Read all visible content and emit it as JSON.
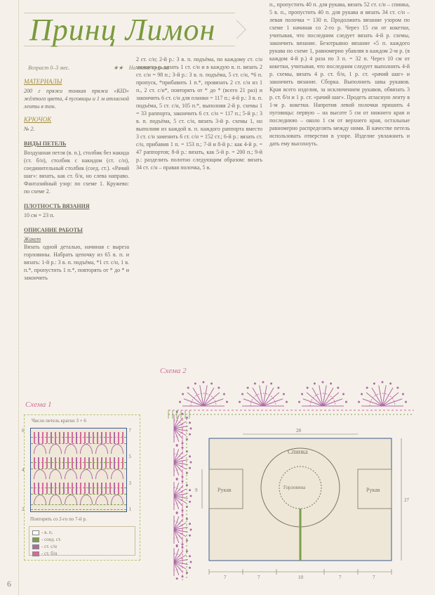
{
  "title": "Принц Лимон",
  "subtitle_left": "Возраст 0–3 мес.",
  "subtitle_stars": "★★",
  "subtitle_right": "На схеме крючка",
  "materials_label": "МАТЕРИАЛЫ",
  "materials_text": "200 г пряжи тонкая пряжа «KID» жёлтого цвета, 4 пуговицы и 1 м атласной ленты в тон.",
  "hook_label": "КРЮЧОК",
  "hook_text": "№ 2.",
  "stitches_h": "ВИДЫ ПЕТЕЛЬ",
  "stitches_text": "Воздушная петля (в. п.), столбик без накида (ст. б/н), столбик с накидом (ст. с/н), соединительный столбик (соед. ст.). «Рачий шаг»: вязать, как ст. б/н, но слева направо. Фантазийный узор: по схеме 1. Кружево: по схеме 2.",
  "gauge_h": "ПЛОТНОСТЬ ВЯЗАНИЯ",
  "gauge_text": "10 см = 23 п.",
  "work_h": "ОПИСАНИЕ РАБОТЫ",
  "work_sub": "Жакет",
  "work_text": "Вязать одной деталью, начиная с выреза горловины. Набрать цепочку из 65 в. п. и вязать: 1-й р.: 3 в. п. подъёма, *1 ст. с/н, 1 в. п.*, пропустить 1 п.*, повторять от * до * и закончить",
  "col2_text": "2 ст. с/н; 2-й р.: 3 в. п. подъёма, по каждому ст. с/н нижнего р. вязать 1 ст. с/н и в каждую в. п. вязать 2 ст. с/н = 98 п.; 3-й р.: 3 в. п. подъёма, 5 ст. с/н, *6 п. пропуск, *прибавить 1 п.*, провязать 2 ст. с/н из 1 п., 2 ст. с/н*, повторять от * до * (всего 21 раз) и закончить 6 ст. с/н для планки = 117 п.; 4-й р.: 3 в. п. подъёма, 5 ст. с/н, 105 п.*, выполняя 2-й р. схемы 1 = 33 раппорта, закончить 6 ст. с/н = 117 п.; 5-й р.: 3 в. п. подъёма, 5 ст. с/н, вязать 3-й р. схемы 1, но выполняя из каждой в. п. каждого раппорта вместо 3 ст. с/н заменить 6 ст. с/н = 152 ст.; 6-й р.: вязать ст. с/н, прибавив 1 п. = 153 п.; 7-й и 8-й р.: как 4-й р. = 47 раппортов; 8-й р.: вязать, как 5-й р. = 200 п.; 9-й р.: разделить полотно следующим образом: вязать 34 ст. с/н – правая полочка, 5 в.",
  "col3_text": "п., пропустить 40 п. для рукава, вязать 52 ст. с/н – спинка, 5 в. п., пропустить 40 п. для рукава и вязать 34 ст. с/н – левая полочка = 130 п. Продолжить вязание узором по схеме 1 начиная со 2-го р. Через 15 см от кокетки, учитывая, что последним следует вязать 4-й р. схемы, закончить вязание. Безотрывно вязание «5 п. каждого рукава по схеме 1, равномерно убавляя в каждом 2-м р. (в каждом 4-й р.) 4 раза по 3 п. = 32 п. Через 10 см от кокетки, учитывая, что последним следует выполнить 4-й р. схемы, вязать 4 р. ст. б/н, 1 р. ст. «рачий шаг» и закончить вязание. Сборка. Выполнить швы рукавов. Края всего изделия, за исключением рукавов, обвязать 3 р. ст. б/н и 1 р. ст. «рачий шаг». Продеть атласную ленту в 1-м р. кокетки. Напротив левой полочки пришить 4 пуговицы: первую – на высоте 5 см от нижнего края и последнюю – около 1 см от верхнего края, остальные равномерно распределить между ними. В качестве петель использовать отверстия в узоре. Изделие увлажнить и дать ему высохнуть.",
  "chart1_label": "Схема 1",
  "chart2_label": "Схема 2",
  "chart1": {
    "caption": "Число петель кратно 3 + 6",
    "footer": "Повторять со 2-го по 7-й р.",
    "legend": [
      {
        "sym": "□",
        "color": "#ffffff",
        "txt": "- в. п."
      },
      {
        "sym": "■",
        "color": "#7aa04a",
        "txt": "- соед. ст."
      },
      {
        "sym": "▮",
        "color": "#b06aa8",
        "txt": "- ст. с/н"
      },
      {
        "sym": "▯",
        "color": "#d46a9a",
        "txt": "- ст. б/н"
      }
    ],
    "rows_left": [
      "6",
      "4",
      "2"
    ],
    "rows_right": [
      "7",
      "5",
      "3",
      "1"
    ],
    "stripe_colors": [
      "#7aa04a",
      "#b06aa8",
      "#d46a9a"
    ],
    "shell_color": "#b06aa8",
    "frame": "#3a5a8f"
  },
  "chart2": {
    "shell_color": "#b06aa8",
    "dash_color": "#d46a9a",
    "mesh_color": "#7aa04a",
    "frame": "#3a5a8f",
    "axis": "#7b7362",
    "canvas": "#eee7d7",
    "labels": {
      "spine": "Спинка",
      "sleeve": "Рукав",
      "center": "Горловина"
    },
    "dims_bottom": [
      "7",
      "7",
      "10",
      "7",
      "7"
    ],
    "dim_top": "28",
    "dim_side": "27",
    "dim_side2": "9"
  },
  "page_number": "6"
}
